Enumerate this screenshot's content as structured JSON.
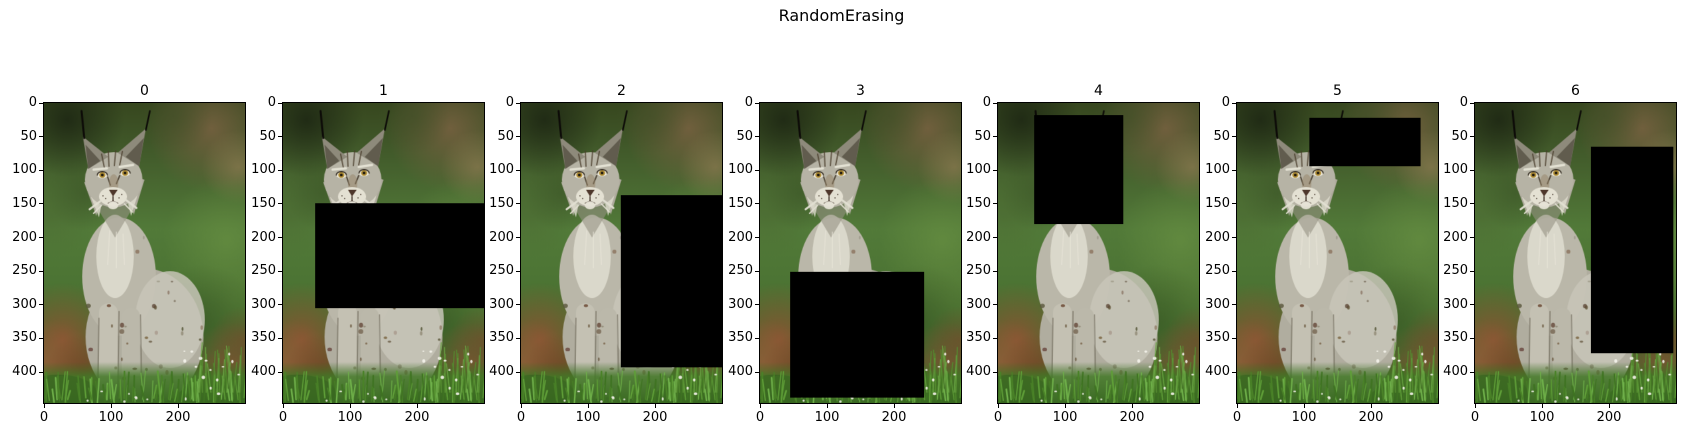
{
  "figure": {
    "title": "RandomErasing",
    "background": "#ffffff"
  },
  "chart_data": {
    "type": "image_grid",
    "title": "RandomErasing",
    "description": "Seven copies of the same photograph of a Eurasian lynx sitting upright in grass. Copy 0 is the original; copies 1-6 each have one random solid black rectangle erased (RandomErasing augmentation).",
    "image_subject": "Eurasian lynx sitting upright facing camera; black ear tufts, amber eyes, white chest; blurred green/brown forest background, reddish dirt lower-left and right, bright grass with small white flowers along the bottom",
    "erase_color": "#000000",
    "x_ticks": [
      0,
      100,
      200
    ],
    "y_ticks": [
      0,
      50,
      100,
      150,
      200,
      250,
      300,
      350,
      400
    ],
    "x_range": [
      0,
      300
    ],
    "y_range": [
      0,
      446
    ],
    "y_axis_inverted": true,
    "subplots": [
      {
        "title": "0",
        "erase_rect": null
      },
      {
        "title": "1",
        "erase_rect": {
          "x1": 48,
          "y1": 149,
          "x2": 300,
          "y2": 305
        }
      },
      {
        "title": "2",
        "erase_rect": {
          "x1": 149,
          "y1": 137,
          "x2": 300,
          "y2": 393
        }
      },
      {
        "title": "3",
        "erase_rect": {
          "x1": 45,
          "y1": 251,
          "x2": 245,
          "y2": 438
        }
      },
      {
        "title": "4",
        "erase_rect": {
          "x1": 54,
          "y1": 18,
          "x2": 187,
          "y2": 180
        }
      },
      {
        "title": "5",
        "erase_rect": {
          "x1": 108,
          "y1": 22,
          "x2": 274,
          "y2": 94
        }
      },
      {
        "title": "6",
        "erase_rect": {
          "x1": 173,
          "y1": 65,
          "x2": 296,
          "y2": 372
        }
      }
    ]
  }
}
